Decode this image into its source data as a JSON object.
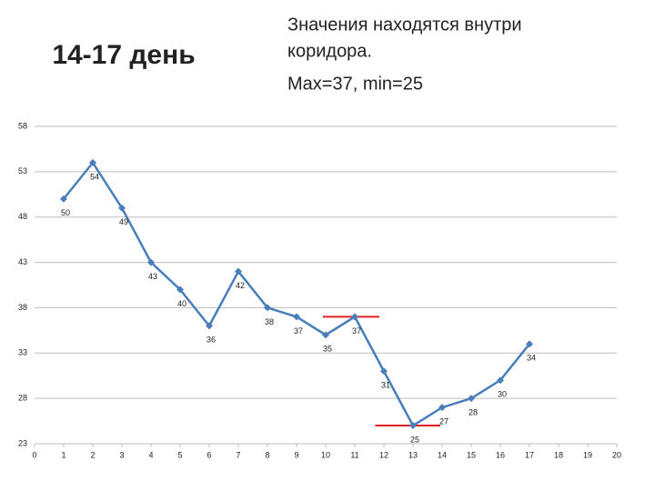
{
  "chart_data": {
    "type": "line",
    "title": "14-17 день",
    "annotation": [
      "Значения находятся внутри",
      "коридора.",
      "Max=37, min=25"
    ],
    "x": [
      1,
      2,
      3,
      4,
      5,
      6,
      7,
      8,
      9,
      10,
      11,
      12,
      13,
      14,
      15,
      16,
      17
    ],
    "series": [
      {
        "color": "#4a7ebb",
        "values": [
          50,
          54,
          49,
          43,
          40,
          36,
          42,
          38,
          37,
          35,
          37,
          31,
          25,
          27,
          28,
          30,
          34
        ]
      }
    ],
    "reference_lines": {
      "color": "#e02020",
      "values": [
        37,
        25
      ]
    },
    "xlim": [
      0,
      20
    ],
    "xticks": [
      0,
      1,
      2,
      3,
      4,
      5,
      6,
      7,
      8,
      9,
      10,
      11,
      12,
      13,
      14,
      15,
      16,
      17,
      18,
      19,
      20
    ],
    "ylim": [
      23,
      58
    ],
    "yticks": [
      23,
      28,
      33,
      38,
      43,
      48,
      53,
      58
    ],
    "grid": true
  }
}
